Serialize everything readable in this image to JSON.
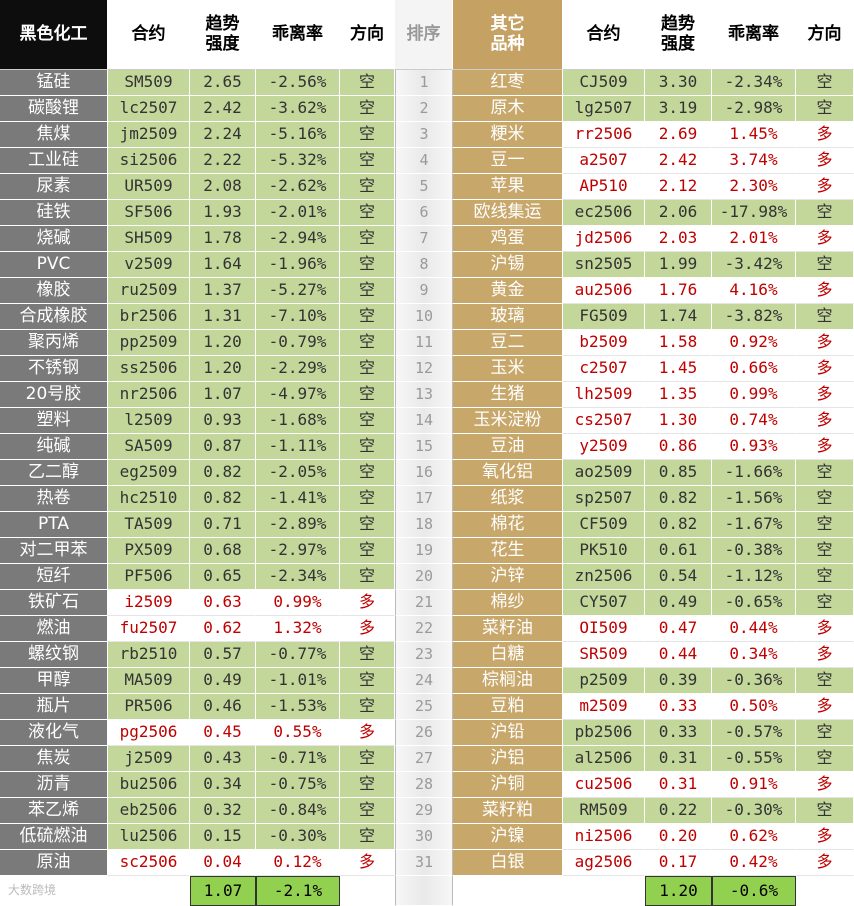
{
  "left": {
    "header": [
      "黑色化工",
      "合约",
      "趋势\n强度",
      "乖离率",
      "方向"
    ],
    "rows": [
      [
        "锰硅",
        "SM509",
        "2.65",
        "-2.56%",
        "空"
      ],
      [
        "碳酸锂",
        "lc2507",
        "2.42",
        "-3.62%",
        "空"
      ],
      [
        "焦煤",
        "jm2509",
        "2.24",
        "-5.16%",
        "空"
      ],
      [
        "工业硅",
        "si2506",
        "2.22",
        "-5.32%",
        "空"
      ],
      [
        "尿素",
        "UR509",
        "2.08",
        "-2.62%",
        "空"
      ],
      [
        "硅铁",
        "SF506",
        "1.93",
        "-2.01%",
        "空"
      ],
      [
        "烧碱",
        "SH509",
        "1.78",
        "-2.94%",
        "空"
      ],
      [
        "PVC",
        "v2509",
        "1.64",
        "-1.96%",
        "空"
      ],
      [
        "橡胶",
        "ru2509",
        "1.37",
        "-5.27%",
        "空"
      ],
      [
        "合成橡胶",
        "br2506",
        "1.31",
        "-7.10%",
        "空"
      ],
      [
        "聚丙烯",
        "pp2509",
        "1.20",
        "-0.79%",
        "空"
      ],
      [
        "不锈钢",
        "ss2506",
        "1.20",
        "-2.29%",
        "空"
      ],
      [
        "20号胶",
        "nr2506",
        "1.07",
        "-4.97%",
        "空"
      ],
      [
        "塑料",
        "l2509",
        "0.93",
        "-1.68%",
        "空"
      ],
      [
        "纯碱",
        "SA509",
        "0.87",
        "-1.11%",
        "空"
      ],
      [
        "乙二醇",
        "eg2509",
        "0.82",
        "-2.05%",
        "空"
      ],
      [
        "热卷",
        "hc2510",
        "0.82",
        "-1.41%",
        "空"
      ],
      [
        "PTA",
        "TA509",
        "0.71",
        "-2.89%",
        "空"
      ],
      [
        "对二甲苯",
        "PX509",
        "0.68",
        "-2.97%",
        "空"
      ],
      [
        "短纤",
        "PF506",
        "0.65",
        "-2.34%",
        "空"
      ],
      [
        "铁矿石",
        "i2509",
        "0.63",
        "0.99%",
        "多"
      ],
      [
        "燃油",
        "fu2507",
        "0.62",
        "1.32%",
        "多"
      ],
      [
        "螺纹钢",
        "rb2510",
        "0.57",
        "-0.77%",
        "空"
      ],
      [
        "甲醇",
        "MA509",
        "0.49",
        "-1.01%",
        "空"
      ],
      [
        "瓶片",
        "PR506",
        "0.46",
        "-1.53%",
        "空"
      ],
      [
        "液化气",
        "pg2506",
        "0.45",
        "0.55%",
        "多"
      ],
      [
        "焦炭",
        "j2509",
        "0.43",
        "-0.71%",
        "空"
      ],
      [
        "沥青",
        "bu2506",
        "0.34",
        "-0.75%",
        "空"
      ],
      [
        "苯乙烯",
        "eb2506",
        "0.32",
        "-0.84%",
        "空"
      ],
      [
        "低硫燃油",
        "lu2506",
        "0.15",
        "-0.30%",
        "空"
      ],
      [
        "原油",
        "sc2506",
        "0.04",
        "0.12%",
        "多"
      ]
    ],
    "footer": [
      "1.07",
      "-2.1%"
    ]
  },
  "rank": {
    "header": "排序",
    "values": [
      1,
      2,
      3,
      4,
      5,
      6,
      7,
      8,
      9,
      10,
      11,
      12,
      13,
      14,
      15,
      16,
      17,
      18,
      19,
      20,
      21,
      22,
      23,
      24,
      25,
      26,
      27,
      28,
      29,
      30,
      31
    ]
  },
  "right": {
    "header": [
      "其它\n品种",
      "合约",
      "趋势\n强度",
      "乖离率",
      "方向"
    ],
    "rows": [
      [
        "红枣",
        "CJ509",
        "3.30",
        "-2.34%",
        "空"
      ],
      [
        "原木",
        "lg2507",
        "3.19",
        "-2.98%",
        "空"
      ],
      [
        "粳米",
        "rr2506",
        "2.69",
        "1.45%",
        "多"
      ],
      [
        "豆一",
        "a2507",
        "2.42",
        "3.74%",
        "多"
      ],
      [
        "苹果",
        "AP510",
        "2.12",
        "2.30%",
        "多"
      ],
      [
        "欧线集运",
        "ec2506",
        "2.06",
        "-17.98%",
        "空"
      ],
      [
        "鸡蛋",
        "jd2506",
        "2.03",
        "2.01%",
        "多"
      ],
      [
        "沪锡",
        "sn2505",
        "1.99",
        "-3.42%",
        "空"
      ],
      [
        "黄金",
        "au2506",
        "1.76",
        "4.16%",
        "多"
      ],
      [
        "玻璃",
        "FG509",
        "1.74",
        "-3.82%",
        "空"
      ],
      [
        "豆二",
        "b2509",
        "1.58",
        "0.92%",
        "多"
      ],
      [
        "玉米",
        "c2507",
        "1.45",
        "0.66%",
        "多"
      ],
      [
        "生猪",
        "lh2509",
        "1.35",
        "0.99%",
        "多"
      ],
      [
        "玉米淀粉",
        "cs2507",
        "1.30",
        "0.74%",
        "多"
      ],
      [
        "豆油",
        "y2509",
        "0.86",
        "0.93%",
        "多"
      ],
      [
        "氧化铝",
        "ao2509",
        "0.85",
        "-1.66%",
        "空"
      ],
      [
        "纸浆",
        "sp2507",
        "0.82",
        "-1.56%",
        "空"
      ],
      [
        "棉花",
        "CF509",
        "0.82",
        "-1.67%",
        "空"
      ],
      [
        "花生",
        "PK510",
        "0.61",
        "-0.38%",
        "空"
      ],
      [
        "沪锌",
        "zn2506",
        "0.54",
        "-1.12%",
        "空"
      ],
      [
        "棉纱",
        "CY507",
        "0.49",
        "-0.65%",
        "空"
      ],
      [
        "菜籽油",
        "OI509",
        "0.47",
        "0.44%",
        "多"
      ],
      [
        "白糖",
        "SR509",
        "0.44",
        "0.34%",
        "多"
      ],
      [
        "棕榈油",
        "p2509",
        "0.39",
        "-0.36%",
        "空"
      ],
      [
        "豆粕",
        "m2509",
        "0.33",
        "0.50%",
        "多"
      ],
      [
        "沪铅",
        "pb2506",
        "0.33",
        "-0.57%",
        "空"
      ],
      [
        "沪铝",
        "al2506",
        "0.31",
        "-0.55%",
        "空"
      ],
      [
        "沪铜",
        "cu2506",
        "0.31",
        "0.91%",
        "多"
      ],
      [
        "菜籽粕",
        "RM509",
        "0.22",
        "-0.30%",
        "空"
      ],
      [
        "沪镍",
        "ni2506",
        "0.20",
        "0.62%",
        "多"
      ],
      [
        "白银",
        "ag2506",
        "0.17",
        "0.42%",
        "多"
      ]
    ],
    "footer": [
      "1.20",
      "-0.6%"
    ]
  },
  "logo": "大数跨境"
}
